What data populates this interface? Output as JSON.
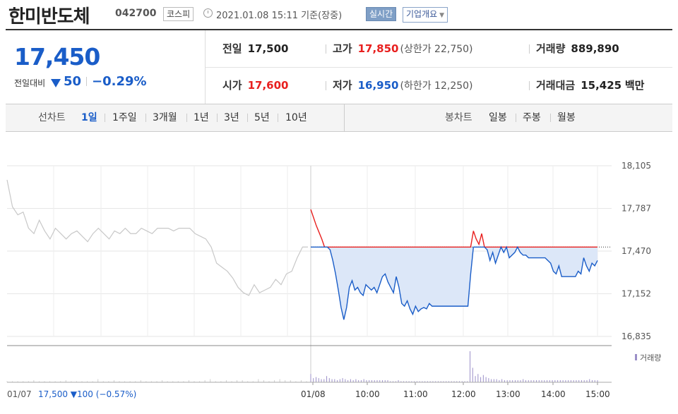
{
  "header": {
    "company": "한미반도체",
    "code": "042700",
    "market": "코스피",
    "datetime": "2021.01.08 15:11 기준(장중)",
    "live_label": "실시간",
    "info_label": "기업개요"
  },
  "quote": {
    "price": "17,450",
    "change_label": "전일대비",
    "change": "50",
    "change_pct": "−0.29%",
    "prev_close_label": "전일",
    "prev_close": "17,500",
    "high_label": "고가",
    "high": "17,850",
    "upper_limit": "(상한가 22,750)",
    "volume_label": "거래량",
    "volume": "889,890",
    "open_label": "시가",
    "open": "17,600",
    "low_label": "저가",
    "low": "16,950",
    "lower_limit": "(하한가 12,250)",
    "value_label": "거래대금",
    "value": "15,425",
    "value_unit": "백만"
  },
  "tabs": {
    "line_label": "선차트",
    "line": [
      "1일",
      "1주일",
      "3개월",
      "1년",
      "3년",
      "5년",
      "10년"
    ],
    "candle_label": "봉차트",
    "candle": [
      "일봉",
      "주봉",
      "월봉"
    ]
  },
  "colors": {
    "up": "#e8201f",
    "down": "#1a5dc8",
    "prev_day": "#c8c8c8",
    "fill": "#dce7f8",
    "volume": "#9b8fc8"
  },
  "chart_data": {
    "type": "line",
    "y_ticks": [
      "18,105",
      "17,787",
      "17,470",
      "17,152",
      "16,835"
    ],
    "ylim": [
      16835,
      18105
    ],
    "reference": 17500,
    "x_labels": [
      "01/07",
      "01/08",
      "10:00",
      "11:00",
      "12:00",
      "13:00",
      "14:00",
      "15:00"
    ],
    "prev_summary": "17,500 ▼100 (−0.57%)",
    "volume_legend": "거래량",
    "prev_day_series": [
      18000,
      17800,
      17740,
      17760,
      17640,
      17600,
      17700,
      17620,
      17560,
      17640,
      17600,
      17560,
      17600,
      17620,
      17580,
      17540,
      17600,
      17640,
      17600,
      17560,
      17620,
      17600,
      17640,
      17600,
      17600,
      17640,
      17620,
      17600,
      17640,
      17640,
      17640,
      17620,
      17640,
      17640,
      17640,
      17600,
      17580,
      17560,
      17500,
      17380,
      17350,
      17320,
      17270,
      17200,
      17160,
      17140,
      17220,
      17160,
      17180,
      17200,
      17260,
      17220,
      17300,
      17320,
      17420,
      17500,
      17500
    ],
    "today_series": [
      17780,
      17720,
      17660,
      17610,
      17560,
      17500,
      17500,
      17480,
      17400,
      17300,
      17180,
      17050,
      16960,
      17050,
      17200,
      17250,
      17180,
      17200,
      17160,
      17140,
      17220,
      17200,
      17180,
      17200,
      17160,
      17220,
      17280,
      17300,
      17240,
      17200,
      17160,
      17280,
      17200,
      17080,
      17060,
      17100,
      17040,
      17000,
      17060,
      17020,
      17040,
      17050,
      17040,
      17080,
      17060,
      17060,
      17060,
      17060,
      17060,
      17060,
      17060,
      17060,
      17060,
      17060,
      17060,
      17060,
      17060,
      17060,
      17300,
      17620,
      17560,
      17520,
      17600,
      17500,
      17480,
      17400,
      17460,
      17380,
      17440,
      17500,
      17460,
      17500,
      17420,
      17440,
      17460,
      17500,
      17460,
      17440,
      17440,
      17420,
      17420,
      17420,
      17420,
      17420,
      17420,
      17420,
      17400,
      17380,
      17320,
      17300,
      17360,
      17280,
      17280,
      17280,
      17280,
      17280,
      17280,
      17320,
      17300,
      17420,
      17360,
      17320,
      17380,
      17360,
      17400
    ],
    "volume_series": [
      1,
      1,
      1,
      1,
      1,
      2,
      1,
      1,
      1,
      1,
      1,
      2,
      1,
      1,
      1,
      1,
      1,
      3,
      1,
      1,
      2,
      1,
      1,
      1,
      1,
      2,
      1,
      1,
      1,
      2,
      1,
      1,
      1,
      1,
      2,
      1,
      1,
      2,
      3,
      1,
      1,
      2,
      1,
      2,
      2,
      1,
      1,
      3,
      2,
      1,
      2,
      3,
      2,
      2,
      1,
      2,
      1,
      8,
      4,
      5,
      4,
      3,
      3,
      6,
      4,
      3,
      3,
      2,
      3,
      4,
      3,
      2,
      3,
      2,
      3,
      2,
      2,
      3,
      2,
      2,
      2,
      2,
      2,
      2,
      2,
      2,
      2,
      1,
      1,
      1,
      2,
      1,
      1,
      1,
      1,
      1,
      1,
      1,
      1,
      1,
      1,
      1,
      1,
      1,
      1,
      1,
      1,
      1,
      1,
      1,
      1,
      1,
      1,
      1,
      1,
      1,
      1,
      30,
      14,
      6,
      8,
      5,
      7,
      5,
      4,
      3,
      3,
      3,
      2,
      3,
      2,
      2,
      2,
      2,
      2,
      2,
      2,
      3,
      2,
      2,
      2,
      2,
      2,
      2,
      2,
      2,
      2,
      2,
      2,
      2,
      2,
      2,
      2,
      2,
      2,
      2,
      2,
      2,
      2,
      2,
      2,
      2,
      3,
      2,
      2,
      2
    ]
  }
}
